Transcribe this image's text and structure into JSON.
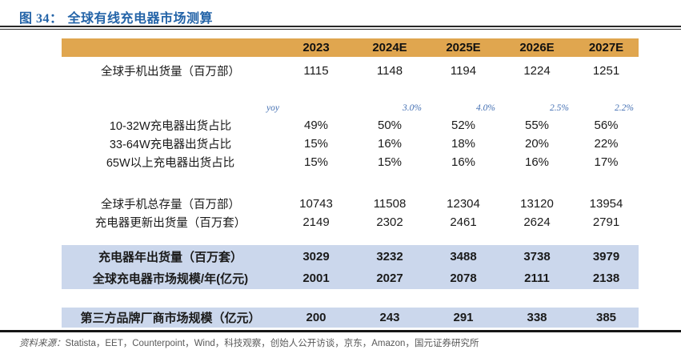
{
  "figure": {
    "label": "图 34：",
    "title": "全球有线充电器市场测算"
  },
  "colors": {
    "header_bg": "#E0A64F",
    "highlight_bg": "#CBD7EC",
    "title_blue": "#2464A8",
    "yoy_blue": "#4470B3",
    "source_gray": "#595959",
    "rule_black": "#1a1a1a"
  },
  "table": {
    "columns": [
      "2023",
      "2024E",
      "2025E",
      "2026E",
      "2027E"
    ],
    "rows": [
      {
        "label": "全球手机出货量（百万部）",
        "values": [
          "1115",
          "1148",
          "1194",
          "1224",
          "1251"
        ]
      },
      {
        "label": "yoy",
        "values": [
          "",
          "3.0%",
          "4.0%",
          "2.5%",
          "2.2%"
        ]
      },
      {
        "label": "10-32W充电器出货占比",
        "values": [
          "49%",
          "50%",
          "52%",
          "55%",
          "56%"
        ]
      },
      {
        "label": "33-64W充电器出货占比",
        "values": [
          "15%",
          "16%",
          "18%",
          "20%",
          "22%"
        ]
      },
      {
        "label": "65W以上充电器出货占比",
        "values": [
          "15%",
          "15%",
          "16%",
          "16%",
          "17%"
        ]
      },
      {
        "label": "全球手机总存量（百万部）",
        "values": [
          "10743",
          "11508",
          "12304",
          "13120",
          "13954"
        ]
      },
      {
        "label": "充电器更新出货量（百万套）",
        "values": [
          "2149",
          "2302",
          "2461",
          "2624",
          "2791"
        ]
      },
      {
        "label": "充电器年出货量（百万套）",
        "values": [
          "3029",
          "3232",
          "3488",
          "3738",
          "3979"
        ]
      },
      {
        "label": "全球充电器市场规模/年(亿元)",
        "values": [
          "2001",
          "2027",
          "2078",
          "2111",
          "2138"
        ]
      },
      {
        "label": "第三方品牌厂商市场规模（亿元）",
        "values": [
          "200",
          "243",
          "291",
          "338",
          "385"
        ]
      }
    ]
  },
  "source": {
    "label": "资料来源：",
    "text": "Statista，EET，Counterpoint，Wind，科技观察，创始人公开访谈，京东，Amazon，国元证券研究所"
  }
}
